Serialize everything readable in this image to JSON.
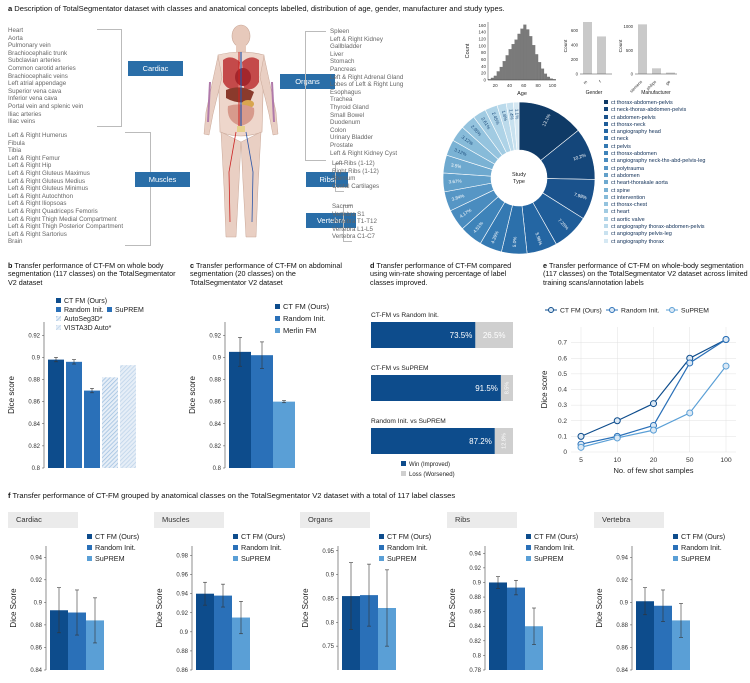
{
  "header": {
    "letter": "a",
    "text": "Description of TotalSegmentator dataset with classes and anatomical concepts labelled, distribution of age, gender, manufacturer and study types."
  },
  "categories": {
    "cardiac": {
      "label": "Cardiac",
      "items": [
        "Heart",
        "Aorta",
        "Pulmonary vein",
        "Brachiocephalic trunk",
        "Subclavian arteries",
        "Common carotid arteries",
        "Brachiocephalic veins",
        "Left atrial appendage",
        "Superior vena cava",
        "Inferior vena cava",
        "Portal vein and splenic vein",
        "Iliac arteries",
        "Iliac veins"
      ]
    },
    "muscles": {
      "label": "Muscles",
      "items": [
        "Left & Right Humerus",
        "Fibula",
        "Tibia",
        "Left & Right Femur",
        "Left & Right Hip",
        "Left & Right Gluteus Maximus",
        "Left & Right Gluteus Medius",
        "Left & Right Gluteus Minimus",
        "Left & Right Autochthon",
        "Left & Right Iliopsoas",
        "Left & Right Quadriceps Femoris",
        "Left & Right Thigh Medial Compartment",
        "Left & Right Thigh Posterior Compartment",
        "Left & Right Sartorius",
        "Brain"
      ]
    },
    "organs": {
      "label": "Organs",
      "items": [
        "Spleen",
        "Left & Right Kidney",
        "Gallbladder",
        "Liver",
        "Stomach",
        "Pancreas",
        "Left & Right Adrenal Gland",
        "Lobes of Left & Right Lung",
        "Esophagus",
        "Trachea",
        "Thyroid Gland",
        "Small Bowel",
        "Duodenum",
        "Colon",
        "Urinary Bladder",
        "Prostate",
        "Left & Right Kidney Cyst"
      ]
    },
    "ribs": {
      "label": "Ribs",
      "items": [
        "Left Ribs (1-12)",
        "Right Ribs (1-12)",
        "Sternum",
        "Costal Cartilages"
      ]
    },
    "vertebra": {
      "label": "Vertebra",
      "items": [
        "Sacrum",
        "Vertebra S1",
        "Vertebra T1-T12",
        "Vertebra L1-L5",
        "Vertebra C1-C7"
      ]
    }
  },
  "age_hist": {
    "ylabel": "Count",
    "xlabel": "Age",
    "yticks": [
      "0",
      "20",
      "40",
      "60",
      "80",
      "100",
      "120",
      "140",
      "160"
    ],
    "xticks": [
      "20",
      "40",
      "60",
      "80",
      "100"
    ],
    "values": [
      2,
      6,
      12,
      25,
      38,
      55,
      72,
      90,
      105,
      118,
      135,
      150,
      162,
      148,
      128,
      102,
      75,
      52,
      33,
      18,
      9,
      4,
      2
    ]
  },
  "gender_bar": {
    "ylabel": "Count",
    "xlabel": "Gender",
    "yticks": [
      "0",
      "200",
      "400",
      "600"
    ],
    "categories": [
      "m",
      "f"
    ],
    "values": [
      720,
      520
    ]
  },
  "manufacturer_bar": {
    "ylabel": "Count",
    "xlabel": "Manufacturer",
    "yticks": [
      "0",
      "500",
      "1000"
    ],
    "categories": [
      "siemens",
      "philips",
      "ge"
    ],
    "values": [
      1050,
      120,
      30
    ]
  },
  "donut": {
    "center_label": "Study\nType",
    "labels": [
      "ct thorax-abdomen-pelvis",
      "ct neck-thorax-abdomen-pelvis",
      "ct abdomen-pelvis",
      "ct thorax-neck",
      "ct angiography head",
      "ct neck",
      "ct pelvis",
      "ct thorax-abdomen",
      "ct angiography neck-thx-abd-pelvis-leg",
      "ct polytrauma",
      "ct abdomen",
      "ct heart-thorakale aorta",
      "ct spine",
      "ct  intervention",
      "ct thorax-chest",
      "ct heart",
      "ct aortic valve",
      "ct angiography thorax-abdomen-pelvis",
      "ct angiography pelvis-leg",
      "ct angiography thorax"
    ],
    "values": [
      13.1,
      10.2,
      7.98,
      7.25,
      5.96,
      5.0,
      4.39,
      4.51,
      4.17,
      3.84,
      3.67,
      3.5,
      3.12,
      3.12,
      2.95,
      2.61,
      2.45,
      1.8,
      1.4,
      1.1
    ],
    "pct_labels": [
      "13.1%",
      "10.2%",
      "7.98%",
      "7.25%",
      "5.96%",
      "5.0%",
      "4.39%",
      "4.51%",
      "4.17%",
      "3.84%",
      "3.67%",
      "3.5%",
      "3.12%",
      "3.12%",
      "2.95%",
      "2.61%",
      "2.45%",
      "1.8%",
      "1.4%",
      "1.1%"
    ],
    "colors": [
      "#0f3a66",
      "#14467a",
      "#1a528c",
      "#1f5d99",
      "#2466a3",
      "#2c70ab",
      "#3479b2",
      "#3e83b9",
      "#4a8cbf",
      "#5696c5",
      "#62a0ca",
      "#6ea9cf",
      "#7ab2d4",
      "#87bbd9",
      "#94c3de",
      "#a1cbe2",
      "#aed3e7",
      "#bbdaeb",
      "#c8e1ef",
      "#d5e8f3"
    ]
  },
  "panel_b": {
    "letter": "b",
    "title": "Transfer performance of CT-FM on whole body segmentation (117 classes) on the TotalSegmentator V2 dataset",
    "ylabel": "Dice score",
    "yticks": [
      "0.8",
      "0.82",
      "0.84",
      "0.86",
      "0.88",
      "0.9",
      "0.92"
    ],
    "legend": [
      "CT FM (Ours)",
      "Random Init.",
      "SuPREM",
      "AutoSeg3D*",
      "VISTA3D Auto*"
    ],
    "chart_data": {
      "type": "bar",
      "categories": [
        "CT FM (Ours)",
        "Random Init.",
        "SuPREM",
        "AutoSeg3D*",
        "VISTA3D Auto*"
      ],
      "values": [
        0.898,
        0.896,
        0.87,
        0.882,
        0.893
      ],
      "errors": [
        0.002,
        0.002,
        0.002,
        0,
        0
      ],
      "ylim": [
        0.8,
        0.93
      ]
    }
  },
  "panel_c": {
    "letter": "c",
    "title": "Transfer performance of CT-FM on abdominal segmentation (20 classes) on the TotalSegmentator V2 dataset",
    "ylabel": "Dice score",
    "yticks": [
      "0.8",
      "0.82",
      "0.84",
      "0.86",
      "0.88",
      "0.9",
      "0.92"
    ],
    "legend": [
      "CT FM (Ours)",
      "Random Init.",
      "Merlin FM"
    ],
    "chart_data": {
      "type": "bar",
      "categories": [
        "CT FM (Ours)",
        "Random Init.",
        "Merlin FM"
      ],
      "values": [
        0.905,
        0.902,
        0.86
      ],
      "errors": [
        0.013,
        0.012,
        0.001
      ],
      "ylim": [
        0.8,
        0.93
      ]
    }
  },
  "panel_d": {
    "letter": "d",
    "title": "Transfer performance of CT-FM compared using win-rate showing percentage of label classes improved.",
    "rows": [
      {
        "label": "CT-FM vs Random Init.",
        "win": 73.5,
        "loss": 26.5,
        "win_text": "73.5%",
        "loss_text": "26.5%"
      },
      {
        "label": "CT-FM vs SuPREM",
        "win": 91.5,
        "loss": 8.5,
        "win_text": "91.5%",
        "loss_text": "8.5%"
      },
      {
        "label": "Random Init. vs SuPREM",
        "win": 87.2,
        "loss": 12.8,
        "win_text": "87.2%",
        "loss_text": "12.8%"
      }
    ],
    "legend_win": "Win (Improved)",
    "legend_loss": "Loss (Worsened)"
  },
  "panel_e": {
    "letter": "e",
    "title": "Transfer performance of CT-FM on whole-body segmentation (117 classes) on the TotalSegmentator V2 dataset across limited training scans/annotation labels",
    "ylabel": "Dice score",
    "xlabel": "No. of few shot samples",
    "yticks": [
      "0",
      "0.1",
      "0.2",
      "0.3",
      "0.4",
      "0.5",
      "0.6",
      "0.7"
    ],
    "xticks": [
      "5",
      "10",
      "20",
      "50",
      "100"
    ],
    "legend": [
      "CT FM (Ours)",
      "Random Init.",
      "SuPREM"
    ],
    "chart_data": {
      "type": "line",
      "x": [
        "5",
        "10",
        "20",
        "50",
        "100"
      ],
      "series": [
        {
          "name": "CT FM (Ours)",
          "values": [
            0.1,
            0.2,
            0.31,
            0.6,
            0.72
          ]
        },
        {
          "name": "Random Init.",
          "values": [
            0.05,
            0.1,
            0.17,
            0.57,
            0.72
          ]
        },
        {
          "name": "SuPREM",
          "values": [
            0.03,
            0.09,
            0.14,
            0.25,
            0.55
          ]
        }
      ],
      "ylim": [
        0,
        0.8
      ]
    }
  },
  "panel_f": {
    "letter": "f",
    "title": "Transfer performance of CT-FM grouped by anatomical classes on the TotalSegmentator V2 dataset with a total of 117 label classes",
    "legend": [
      "CT FM (Ours)",
      "Random Init.",
      "SuPREM"
    ],
    "ylabel": "Dice Score",
    "chart_data": [
      {
        "type": "bar",
        "title": "Cardiac",
        "categories": [
          "CT FM (Ours)",
          "Random Init.",
          "SuPREM"
        ],
        "values": [
          0.893,
          0.891,
          0.884
        ],
        "errors": [
          0.02,
          0.02,
          0.02
        ],
        "ylim": [
          0.84,
          0.95
        ],
        "yticks": [
          "0.84",
          "0.86",
          "0.88",
          "0.9",
          "0.92",
          "0.94"
        ]
      },
      {
        "type": "bar",
        "title": "Muscles",
        "categories": [
          "CT FM (Ours)",
          "Random Init.",
          "SuPREM"
        ],
        "values": [
          0.94,
          0.938,
          0.915
        ],
        "errors": [
          0.012,
          0.012,
          0.017
        ],
        "ylim": [
          0.86,
          0.99
        ],
        "yticks": [
          "0.86",
          "0.88",
          "0.9",
          "0.92",
          "0.94",
          "0.96",
          "0.98"
        ]
      },
      {
        "type": "bar",
        "title": "Organs",
        "categories": [
          "CT FM (Ours)",
          "Random Init.",
          "SuPREM"
        ],
        "values": [
          0.855,
          0.857,
          0.83
        ],
        "errors": [
          0.07,
          0.065,
          0.08
        ],
        "ylim": [
          0.7,
          0.96
        ],
        "yticks": [
          "0.75",
          "0.8",
          "0.85",
          "0.9",
          "0.95"
        ]
      },
      {
        "type": "bar",
        "title": "Ribs",
        "categories": [
          "CT FM (Ours)",
          "Random Init.",
          "SuPREM"
        ],
        "values": [
          0.9,
          0.893,
          0.84
        ],
        "errors": [
          0.008,
          0.01,
          0.025
        ],
        "ylim": [
          0.78,
          0.95
        ],
        "yticks": [
          "0.78",
          "0.8",
          "0.82",
          "0.84",
          "0.86",
          "0.88",
          "0.9",
          "0.92",
          "0.94"
        ]
      },
      {
        "type": "bar",
        "title": "Vertebra",
        "categories": [
          "CT FM (Ours)",
          "Random Init.",
          "SuPREM"
        ],
        "values": [
          0.901,
          0.897,
          0.884
        ],
        "errors": [
          0.012,
          0.014,
          0.015
        ],
        "ylim": [
          0.84,
          0.95
        ],
        "yticks": [
          "0.84",
          "0.86",
          "0.88",
          "0.9",
          "0.92",
          "0.94"
        ]
      }
    ]
  },
  "colors": {
    "dark": "#0d4c8c",
    "mid": "#2a70b8",
    "light": "#5a9fd6",
    "accent": "#2a6ea8",
    "grey": "#cccccc"
  }
}
